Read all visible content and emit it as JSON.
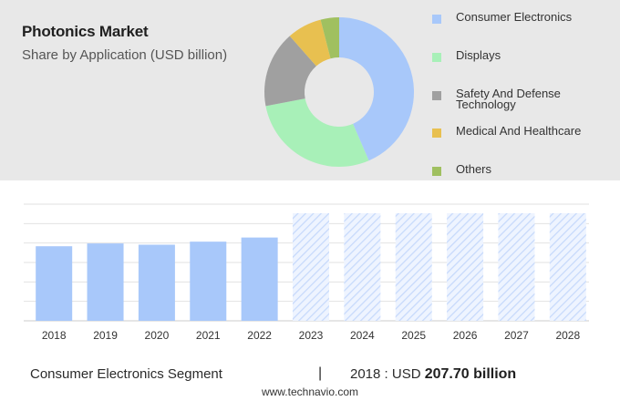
{
  "header": {
    "title": "Photonics Market",
    "subtitle": "Share by Application (USD billion)"
  },
  "chart_data": [
    {
      "type": "pie",
      "donut": true,
      "labels": [
        "Consumer Electronics",
        "Displays",
        "Safety And Defense Technology",
        "Medical And Healthcare",
        "Others"
      ],
      "values": [
        43.5,
        28.5,
        16.5,
        7.5,
        4.0
      ],
      "colors": [
        "#a8c8fa",
        "#a8f0b8",
        "#a0a0a0",
        "#e8c050",
        "#a0c060"
      ]
    },
    {
      "type": "bar",
      "categories": [
        "2018",
        "2019",
        "2020",
        "2021",
        "2022",
        "2023",
        "2024",
        "2025",
        "2026",
        "2027",
        "2028"
      ],
      "values": [
        207.7,
        215.5,
        212.0,
        220.5,
        232.0,
        null,
        null,
        null,
        null,
        null,
        null
      ],
      "forecast_categories": [
        "2023",
        "2024",
        "2025",
        "2026",
        "2027",
        "2028"
      ],
      "ylim": [
        0,
        325
      ],
      "grid": true,
      "color": "#a8c8fa"
    }
  ],
  "footer": {
    "segment": "Consumer Electronics Segment",
    "separator": "|",
    "year_prefix": "2018 : USD",
    "value": "207.70 billion"
  },
  "source": "www.technavio.com"
}
